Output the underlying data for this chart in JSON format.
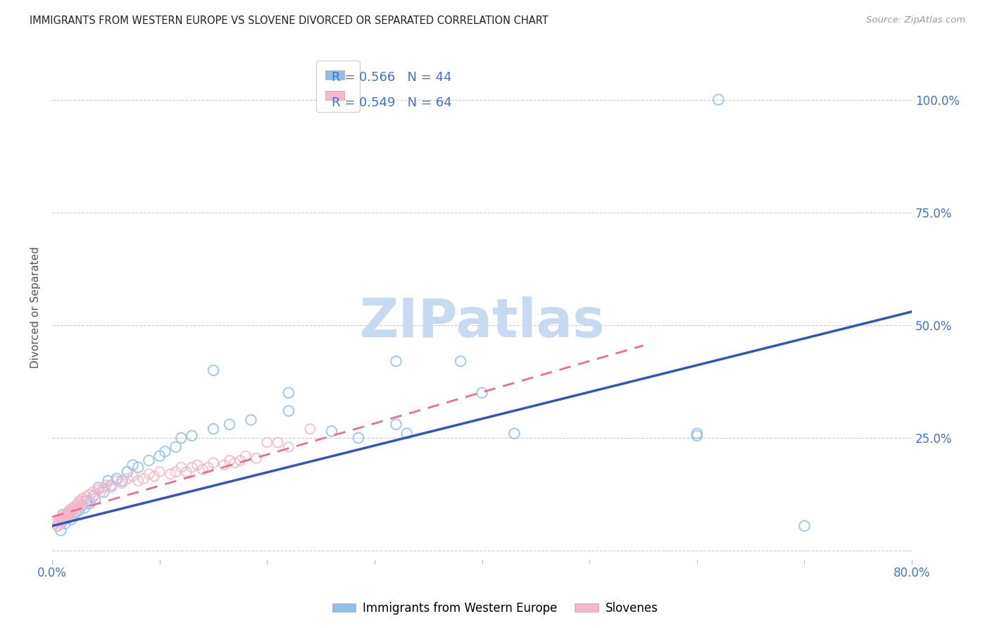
{
  "title": "IMMIGRANTS FROM WESTERN EUROPE VS SLOVENE DIVORCED OR SEPARATED CORRELATION CHART",
  "source": "Source: ZipAtlas.com",
  "ylabel": "Divorced or Separated",
  "watermark": "ZIPatlas",
  "xlim": [
    0.0,
    0.8
  ],
  "ylim": [
    -0.02,
    1.1
  ],
  "xticks": [
    0.0,
    0.1,
    0.2,
    0.3,
    0.4,
    0.5,
    0.6,
    0.7,
    0.8
  ],
  "xticklabels": [
    "0.0%",
    "",
    "",
    "",
    "",
    "",
    "",
    "",
    "80.0%"
  ],
  "ytick_positions": [
    0.0,
    0.25,
    0.5,
    0.75,
    1.0
  ],
  "ytick_labels": [
    "",
    "25.0%",
    "50.0%",
    "75.0%",
    "100.0%"
  ],
  "legend_blue_r": "R = 0.566",
  "legend_blue_n": "N = 44",
  "legend_pink_r": "R = 0.549",
  "legend_pink_n": "N = 64",
  "blue_scatter_x": [
    0.005,
    0.008,
    0.01,
    0.01,
    0.012,
    0.015,
    0.016,
    0.018,
    0.02,
    0.022,
    0.025,
    0.028,
    0.03,
    0.032,
    0.035,
    0.038,
    0.04,
    0.043,
    0.048,
    0.052,
    0.055,
    0.06,
    0.065,
    0.07,
    0.075,
    0.08,
    0.09,
    0.1,
    0.105,
    0.115,
    0.12,
    0.13,
    0.15,
    0.165,
    0.185,
    0.22,
    0.26,
    0.285,
    0.32,
    0.33,
    0.4,
    0.43,
    0.6,
    0.7
  ],
  "blue_scatter_y": [
    0.055,
    0.045,
    0.065,
    0.08,
    0.06,
    0.075,
    0.085,
    0.07,
    0.08,
    0.085,
    0.09,
    0.1,
    0.095,
    0.11,
    0.105,
    0.12,
    0.115,
    0.14,
    0.13,
    0.155,
    0.145,
    0.16,
    0.155,
    0.175,
    0.19,
    0.185,
    0.2,
    0.21,
    0.22,
    0.23,
    0.25,
    0.255,
    0.27,
    0.28,
    0.29,
    0.31,
    0.265,
    0.25,
    0.28,
    0.26,
    0.35,
    0.26,
    0.255,
    0.055
  ],
  "blue_outlier_x": [
    0.62,
    0.6,
    0.38,
    0.32,
    0.22,
    0.15
  ],
  "blue_outlier_y": [
    1.0,
    0.26,
    0.42,
    0.42,
    0.35,
    0.4
  ],
  "pink_scatter_x": [
    0.003,
    0.005,
    0.006,
    0.007,
    0.008,
    0.009,
    0.01,
    0.01,
    0.011,
    0.012,
    0.013,
    0.014,
    0.015,
    0.016,
    0.017,
    0.018,
    0.019,
    0.02,
    0.021,
    0.022,
    0.023,
    0.024,
    0.025,
    0.026,
    0.027,
    0.028,
    0.03,
    0.032,
    0.035,
    0.038,
    0.04,
    0.043,
    0.045,
    0.048,
    0.05,
    0.055,
    0.06,
    0.065,
    0.07,
    0.075,
    0.08,
    0.085,
    0.09,
    0.095,
    0.1,
    0.11,
    0.115,
    0.12,
    0.125,
    0.13,
    0.135,
    0.14,
    0.145,
    0.15,
    0.16,
    0.165,
    0.17,
    0.175,
    0.18,
    0.19,
    0.2,
    0.21,
    0.22,
    0.24
  ],
  "pink_scatter_y": [
    0.06,
    0.055,
    0.065,
    0.06,
    0.07,
    0.065,
    0.075,
    0.08,
    0.07,
    0.075,
    0.08,
    0.075,
    0.085,
    0.09,
    0.08,
    0.085,
    0.095,
    0.09,
    0.095,
    0.1,
    0.095,
    0.105,
    0.11,
    0.1,
    0.11,
    0.115,
    0.11,
    0.12,
    0.125,
    0.13,
    0.125,
    0.135,
    0.13,
    0.14,
    0.145,
    0.14,
    0.155,
    0.15,
    0.16,
    0.165,
    0.155,
    0.16,
    0.17,
    0.165,
    0.175,
    0.17,
    0.175,
    0.185,
    0.175,
    0.185,
    0.19,
    0.18,
    0.185,
    0.195,
    0.19,
    0.2,
    0.195,
    0.2,
    0.21,
    0.205,
    0.24,
    0.24,
    0.23,
    0.27
  ],
  "blue_line_x": [
    0.0,
    0.8
  ],
  "blue_line_y": [
    0.055,
    0.53
  ],
  "pink_line_x": [
    0.0,
    0.55
  ],
  "pink_line_y": [
    0.075,
    0.455
  ],
  "blue_color": "#92bfe8",
  "pink_color": "#f4b8c8",
  "blue_line_color": "#3355bb",
  "pink_line_color": "#e87090",
  "title_color": "#222222",
  "axis_label_color": "#555555",
  "tick_color": "#4472c4",
  "grid_color": "#cccccc",
  "watermark_color": "#c8daf0",
  "background_color": "#ffffff"
}
